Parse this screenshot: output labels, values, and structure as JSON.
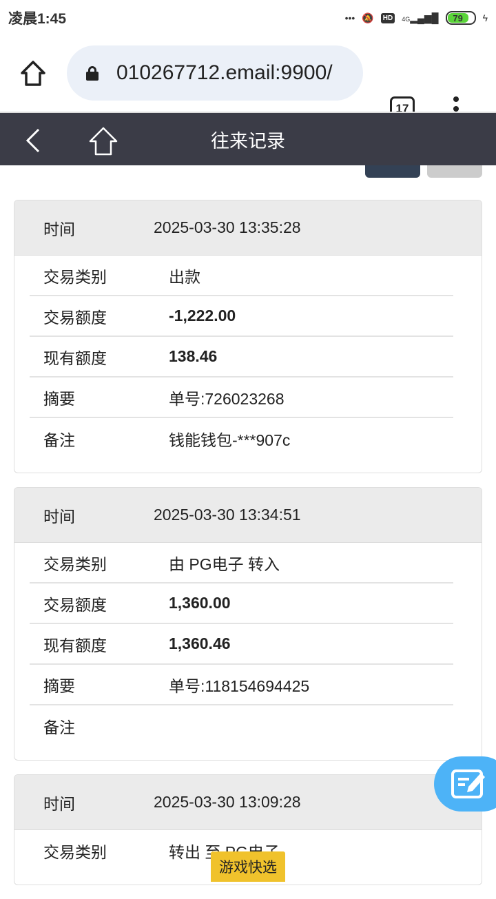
{
  "status_bar": {
    "time": "凌晨1:45",
    "hd": "HD",
    "network": "4G",
    "battery": "79"
  },
  "browser": {
    "url": "010267712.email:9900/",
    "tab_count": "17"
  },
  "header": {
    "title": "往来记录"
  },
  "records": [
    {
      "time_label": "时间",
      "time": "2025-03-30 13:35:28",
      "rows": [
        {
          "label": "交易类别",
          "value": "出款",
          "bold": false
        },
        {
          "label": "交易额度",
          "value": "-1,222.00",
          "bold": true
        },
        {
          "label": "现有额度",
          "value": "138.46",
          "bold": true
        },
        {
          "label": "摘要",
          "value": "单号:726023268",
          "bold": false
        },
        {
          "label": "备注",
          "value": "钱能钱包-***907c",
          "bold": false
        }
      ]
    },
    {
      "time_label": "时间",
      "time": "2025-03-30 13:34:51",
      "rows": [
        {
          "label": "交易类别",
          "value": "由 PG电子 转入",
          "bold": false
        },
        {
          "label": "交易额度",
          "value": "1,360.00",
          "bold": true
        },
        {
          "label": "现有额度",
          "value": "1,360.46",
          "bold": true
        },
        {
          "label": "摘要",
          "value": "单号:118154694425",
          "bold": false
        },
        {
          "label": "备注",
          "value": "",
          "bold": false
        }
      ]
    },
    {
      "time_label": "时间",
      "time": "2025-03-30 13:09:28",
      "rows": [
        {
          "label": "交易类别",
          "value": "转出 至 PG电子",
          "bold": false
        }
      ]
    }
  ],
  "quick_select": "游戏快选",
  "fab_icon": "edit-note-icon"
}
